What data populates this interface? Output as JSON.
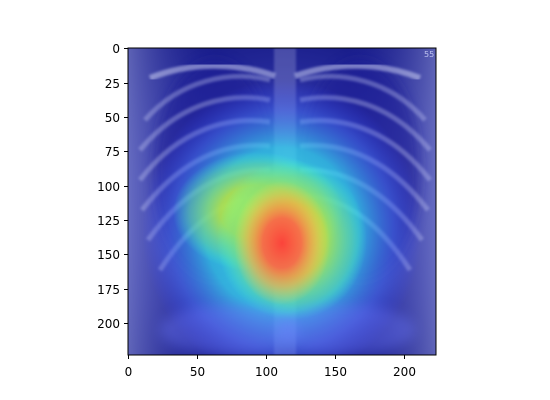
{
  "figure": {
    "image_description_kind": "chest-xray-heatmap-overlay",
    "colormap": "jet",
    "image_extent": {
      "x": [
        0,
        224
      ],
      "y": [
        0,
        224
      ]
    },
    "y_axis_inverted": true,
    "heatmap_peak": {
      "x": 112,
      "y": 143
    },
    "corner_text": "55"
  },
  "axes": {
    "x_ticks": [
      "0",
      "50",
      "100",
      "150",
      "200"
    ],
    "y_ticks": [
      "0",
      "25",
      "50",
      "75",
      "100",
      "125",
      "150",
      "175",
      "200"
    ],
    "x_tick_values": [
      0,
      50,
      100,
      150,
      200
    ],
    "y_tick_values": [
      0,
      25,
      50,
      75,
      100,
      125,
      150,
      175,
      200
    ]
  },
  "colors": {
    "background": "#ffffff",
    "axis": "#000000",
    "heat_low": "#00008b",
    "heat_mid_cyan": "#00ffff",
    "heat_mid_yellow": "#ffff00",
    "heat_high": "#ff0000",
    "xray_bone": "#e8e8f0"
  }
}
